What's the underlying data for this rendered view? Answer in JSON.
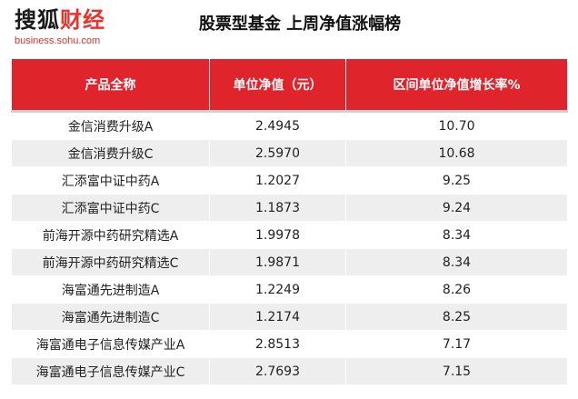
{
  "logo": {
    "brand_part1": "搜狐",
    "brand_part2": "财经",
    "url": "business.sohu.com"
  },
  "title": "股票型基金 上周净值涨幅榜",
  "colors": {
    "header_bg": "#e0242c",
    "row_alt_bg": "#eeeeee",
    "logo_red": "#e8322b"
  },
  "table": {
    "headers": [
      "产品全称",
      "单位净值（元）",
      "区间单位净值增长率%"
    ],
    "rows": [
      {
        "name": "金信消费升级A",
        "nav": "2.4945",
        "growth": "10.70"
      },
      {
        "name": "金信消费升级C",
        "nav": "2.5970",
        "growth": "10.68"
      },
      {
        "name": "汇添富中证中药A",
        "nav": "1.2027",
        "growth": "9.25"
      },
      {
        "name": "汇添富中证中药C",
        "nav": "1.1873",
        "growth": "9.24"
      },
      {
        "name": "前海开源中药研究精选A",
        "nav": "1.9978",
        "growth": "8.34"
      },
      {
        "name": "前海开源中药研究精选C",
        "nav": "1.9871",
        "growth": "8.34"
      },
      {
        "name": "海富通先进制造A",
        "nav": "1.2249",
        "growth": "8.26"
      },
      {
        "name": "海富通先进制造C",
        "nav": "1.2174",
        "growth": "8.25"
      },
      {
        "name": "海富通电子信息传媒产业A",
        "nav": "2.8513",
        "growth": "7.17"
      },
      {
        "name": "海富通电子信息传媒产业C",
        "nav": "2.7693",
        "growth": "7.15"
      }
    ]
  }
}
